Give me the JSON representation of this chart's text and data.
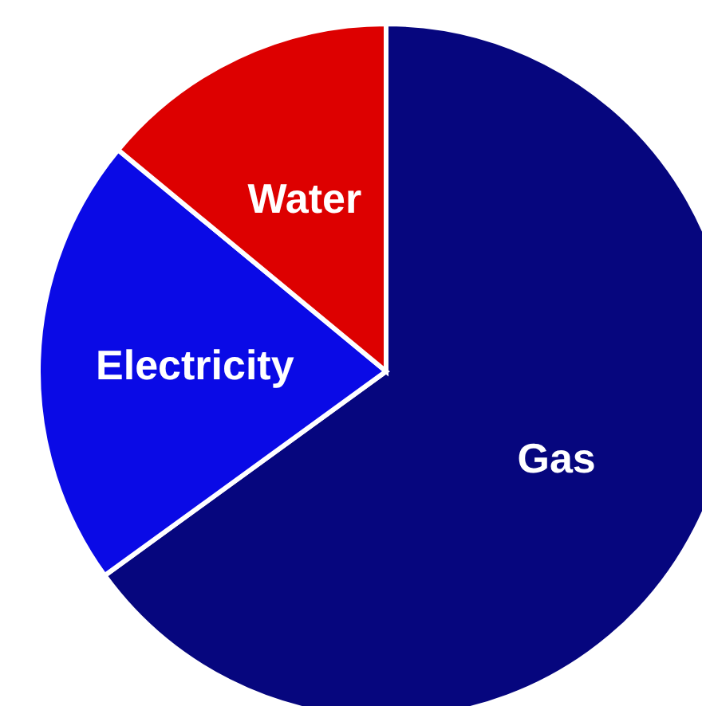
{
  "chart_data": {
    "type": "pie",
    "categories": [
      "Gas",
      "Electricity",
      "Water"
    ],
    "values": [
      65,
      21,
      14
    ],
    "colors": [
      "#06067e",
      "#0a0ae6",
      "#dd0000"
    ]
  }
}
